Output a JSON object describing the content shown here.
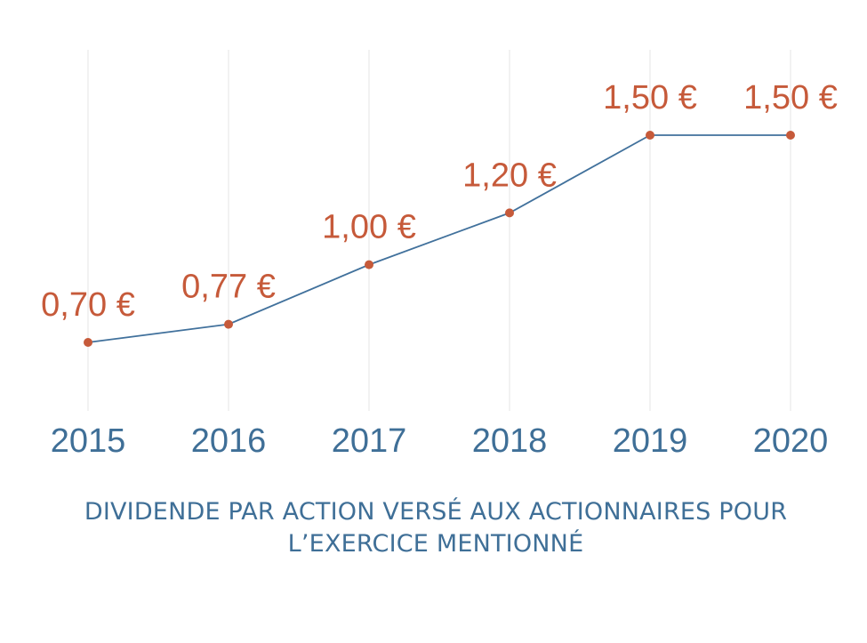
{
  "chart_data": {
    "type": "line",
    "categories": [
      "2015",
      "2016",
      "2017",
      "2018",
      "2019",
      "2020"
    ],
    "values": [
      0.7,
      0.77,
      1.0,
      1.2,
      1.5,
      1.5
    ],
    "data_labels": [
      "0,70 €",
      "0,77 €",
      "1,00 €",
      "1,20 €",
      "1,50 €",
      "1,50 €"
    ],
    "title_lines": [
      "DIVIDENDE PAR ACTION VERSÉ AUX ACTIONNAIRES POUR",
      "L’EXERCICE MENTIONNÉ"
    ],
    "grid": "vertical",
    "colors": {
      "line": "#41719c",
      "marker": "#c65a3a",
      "data_label": "#c65a3a",
      "tick_label": "#3f6f97",
      "gridline": "#e6e6e6"
    }
  }
}
